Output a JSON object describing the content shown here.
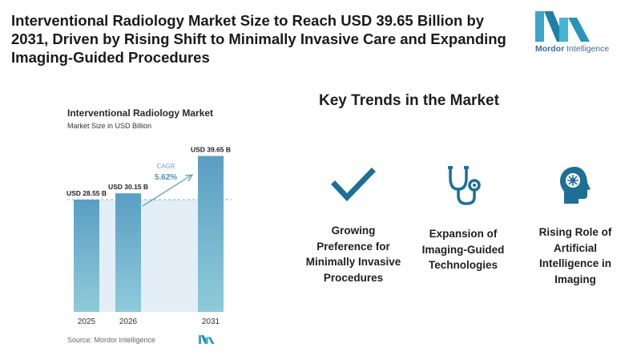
{
  "headline": "Interventional Radiology Market Size to Reach USD 39.65 Billion by 2031, Driven by Rising Shift to Minimally Invasive Care and Expanding Imaging-Guided Procedures",
  "brand": {
    "name_bold": "Mordor",
    "name_rest": " Intelligence",
    "logo_icon": "mordor-intelligence-logo-icon"
  },
  "chart_data": {
    "type": "bar",
    "title": "Interventional Radiology Market",
    "subtitle": "Market Size in USD Billion",
    "categories": [
      "2025",
      "2026",
      "2031"
    ],
    "values": [
      28.55,
      30.15,
      39.65
    ],
    "value_labels": [
      "USD 28.55 B",
      "USD 30.15 B",
      "USD 39.65 B"
    ],
    "cagr_label": "CAGR",
    "cagr_value": "5.62%",
    "xlabel": "",
    "ylabel": "",
    "ylim": [
      0,
      42
    ],
    "grid": false,
    "bar_color": "#5b9ec4",
    "bar_color_end": "#8ecbd9",
    "source": "Source: Mordor Intelligence"
  },
  "trends": {
    "title": "Key Trends in the Market",
    "items": [
      {
        "icon": "checkmark-icon",
        "label": "Growing Preference for Minimally Invasive Procedures"
      },
      {
        "icon": "stethoscope-icon",
        "label": "Expansion of Imaging-Guided Technologies"
      },
      {
        "icon": "ai-brain-head-icon",
        "label": "Rising Role of Artificial Intelligence in Imaging"
      }
    ]
  },
  "colors": {
    "accent": "#1d6f95",
    "brand": "#3aa6c9"
  }
}
